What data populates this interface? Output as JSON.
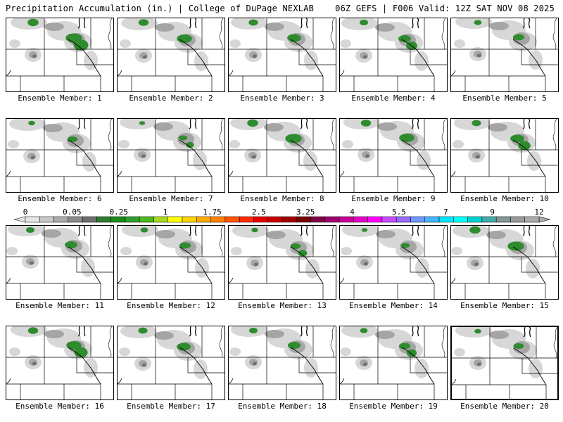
{
  "header": {
    "left": "Precipitation Accumulation (in.) | College of DuPage NEXLAB",
    "right": "06Z GEFS | F006 Valid: 12Z SAT NOV 08 2025"
  },
  "panel_label_prefix": "Ensemble Member:",
  "members": [
    1,
    2,
    3,
    4,
    5,
    6,
    7,
    8,
    9,
    10,
    11,
    12,
    13,
    14,
    15,
    16,
    17,
    18,
    19,
    20
  ],
  "colorbar": {
    "tick_labels": [
      "0",
      "0.05",
      "0.25",
      "1",
      "1.75",
      "2.5",
      "3.25",
      "4",
      "5.5",
      "7",
      "9",
      "12"
    ],
    "colors": [
      "#e6e6e6",
      "#c8c8c8",
      "#aaaaaa",
      "#8c8c8c",
      "#6e6e6e",
      "#2e7d32",
      "#1b8a1b",
      "#2e9e2e",
      "#4cb81e",
      "#a8d81e",
      "#ffff00",
      "#ffd400",
      "#ffaa00",
      "#ff8000",
      "#ff5500",
      "#ff2a00",
      "#e60000",
      "#c80000",
      "#a00000",
      "#780000",
      "#80004a",
      "#a0006e",
      "#c80096",
      "#e600c8",
      "#ff00ff",
      "#c84bff",
      "#9669ff",
      "#6e96ff",
      "#46b4ff",
      "#00e6ff",
      "#00ffff",
      "#00d2d2",
      "#46aaaa",
      "#829696",
      "#9a9a9a",
      "#aaaaaa"
    ]
  },
  "colors": {
    "precip_light": "#d7d7d7",
    "precip_mid": "#a5a5a5",
    "precip_dark": "#707070",
    "precip_green": "#2e8b2e",
    "boundary": "#000000"
  }
}
